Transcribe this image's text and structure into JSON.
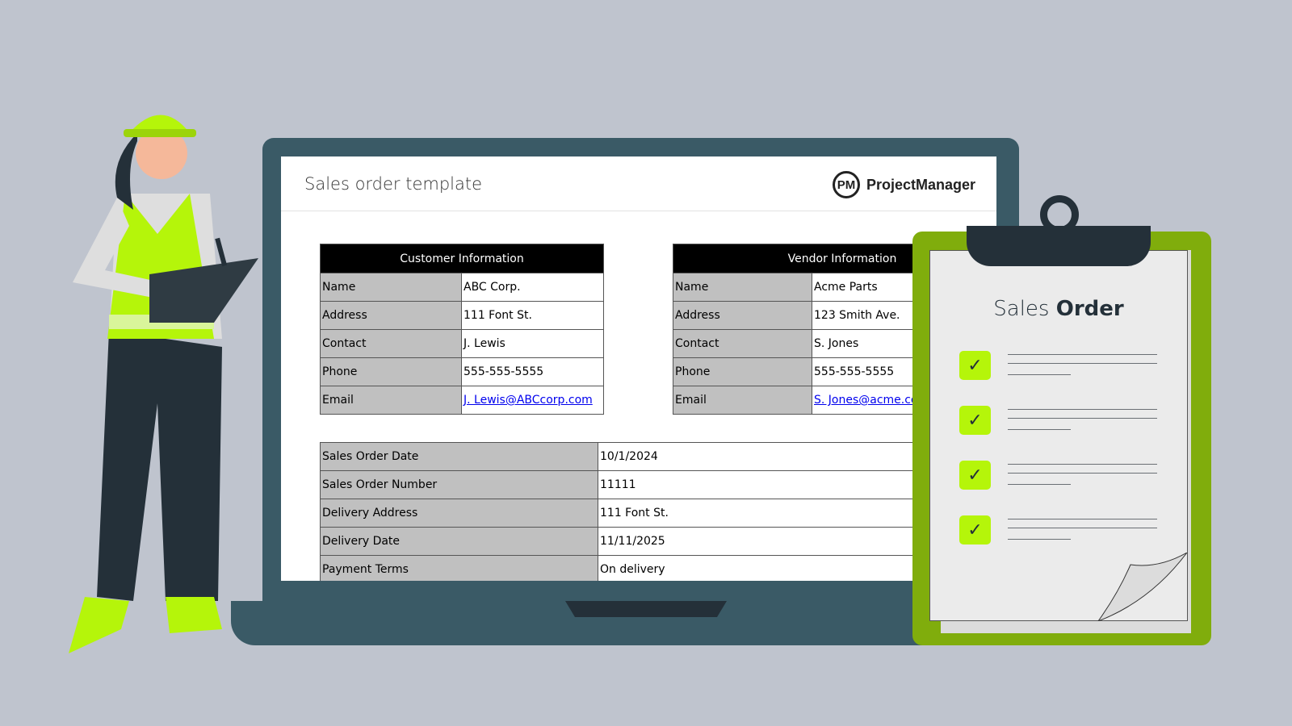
{
  "app": {
    "title": "Sales order template",
    "logo_mark": "PM",
    "logo_text": "ProjectManager"
  },
  "customer": {
    "header": "Customer Information",
    "rows": [
      {
        "label": "Name",
        "value": "ABC Corp."
      },
      {
        "label": "Address",
        "value": "111 Font St."
      },
      {
        "label": "Contact",
        "value": "J. Lewis"
      },
      {
        "label": "Phone",
        "value": "555-555-5555"
      },
      {
        "label": "Email",
        "value": "J. Lewis@ABCcorp.com"
      }
    ]
  },
  "vendor": {
    "header": "Vendor Information",
    "rows": [
      {
        "label": "Name",
        "value": "Acme Parts"
      },
      {
        "label": "Address",
        "value": "123 Smith Ave."
      },
      {
        "label": "Contact",
        "value": "S. Jones"
      },
      {
        "label": "Phone",
        "value": "555-555-5555"
      },
      {
        "label": "Email",
        "value": "S. Jones@acme.com"
      }
    ]
  },
  "order": {
    "rows": [
      {
        "label": "Sales Order Date",
        "value": "10/1/2024"
      },
      {
        "label": "Sales Order Number",
        "value": "11111"
      },
      {
        "label": "Delivery Address",
        "value": "111 Font St."
      },
      {
        "label": "Delivery Date",
        "value": "11/11/2025"
      },
      {
        "label": "Payment Terms",
        "value": "On delivery"
      }
    ]
  },
  "clipboard": {
    "title_light": "Sales",
    "title_bold": "Order",
    "checks": 4
  },
  "colors": {
    "background": "#bfc4ce",
    "laptop": "#3a5a66",
    "clipboard": "#80ad0c",
    "check": "#b5f50a",
    "dark": "#243039",
    "link": "#0000ee"
  }
}
